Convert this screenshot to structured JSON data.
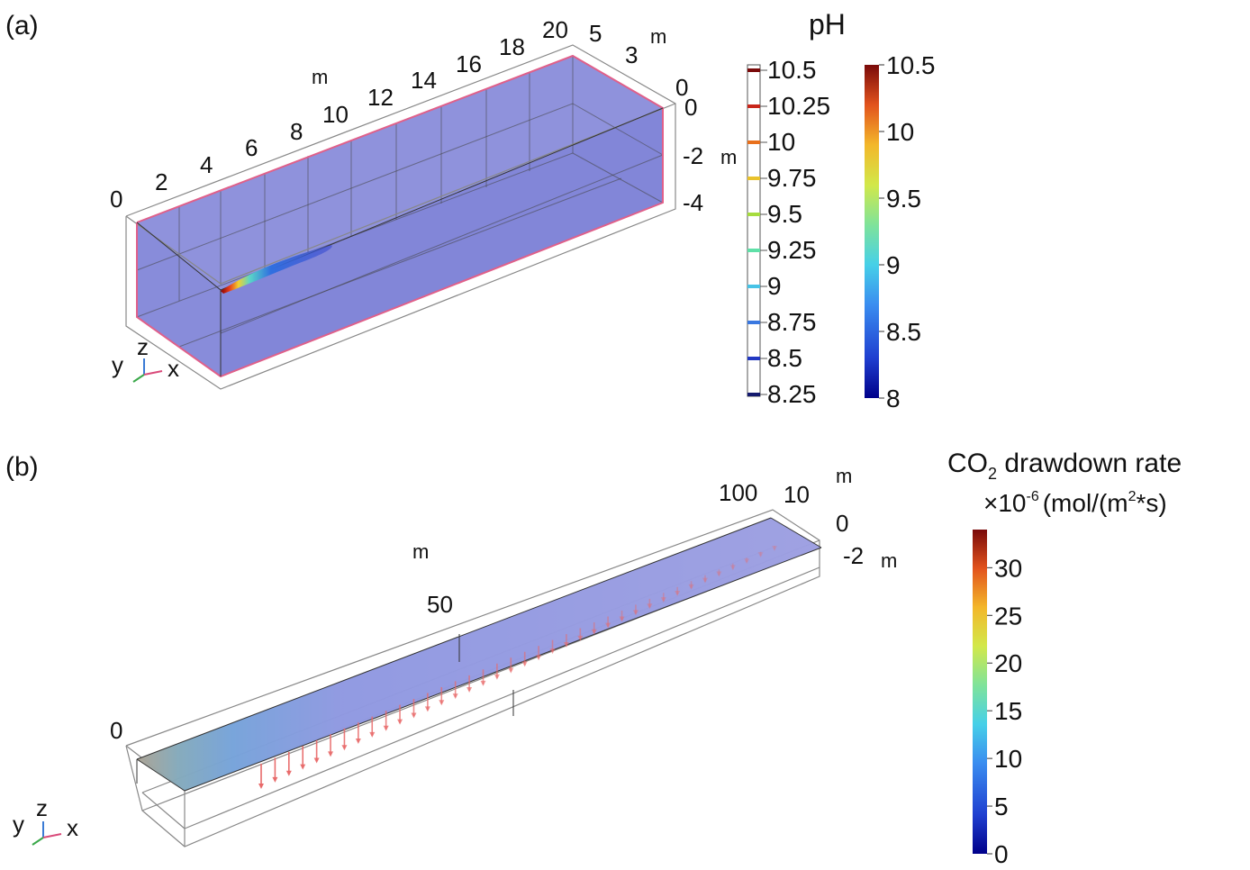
{
  "panel_a": {
    "label": "(a)",
    "x_axis": {
      "ticks": [
        "0",
        "2",
        "4",
        "6",
        "8",
        "10",
        "12",
        "14",
        "16",
        "18",
        "20"
      ],
      "unit": "m"
    },
    "y_axis": {
      "ticks": [
        "5",
        "3",
        "0"
      ],
      "unit": "m"
    },
    "z_axis": {
      "ticks": [
        "0",
        "-2",
        "-4"
      ],
      "unit": "m"
    },
    "triad": {
      "x": "x",
      "y": "y",
      "z": "z"
    },
    "legend_title": "pH",
    "contour_legend": {
      "levels": [
        "10.5",
        "10.25",
        "10",
        "9.75",
        "9.5",
        "9.25",
        "9",
        "8.75",
        "8.5",
        "8.25"
      ],
      "colors": [
        "#7a0a0a",
        "#c8261b",
        "#e8701c",
        "#e9c22c",
        "#a6dc3e",
        "#5fe0a8",
        "#47c3e6",
        "#3a78e0",
        "#2238c2",
        "#141a6e"
      ]
    },
    "color_bar": {
      "ticks": [
        "10.5",
        "10",
        "9.5",
        "9",
        "8.5",
        "8"
      ],
      "min": 8,
      "max": 10.5
    }
  },
  "panel_b": {
    "label": "(b)",
    "x_axis": {
      "ticks": [
        "0",
        "50",
        "100"
      ],
      "unit": "m"
    },
    "y_axis": {
      "ticks": [
        "10",
        "0"
      ],
      "unit": "m"
    },
    "z_axis": {
      "ticks": [
        "-2"
      ],
      "unit": "m"
    },
    "triad": {
      "x": "x",
      "y": "y",
      "z": "z"
    },
    "legend_title_prefix": "CO",
    "legend_title_sub": "2",
    "legend_title_suffix": " drawdown rate",
    "legend_unit_prefix": "×10",
    "legend_unit_exp": "-6",
    "legend_unit_main": "(mol/(m",
    "legend_unit_exp2": "2",
    "legend_unit_end": "*s)",
    "color_bar": {
      "ticks": [
        "30",
        "25",
        "20",
        "15",
        "10",
        "5",
        "0"
      ],
      "min": 0,
      "max": 34
    }
  },
  "colors": {
    "volume_fill": "#7b7fd6",
    "edge": "#e0608a",
    "arrow": "#e86a6a",
    "grid": "#555555"
  }
}
